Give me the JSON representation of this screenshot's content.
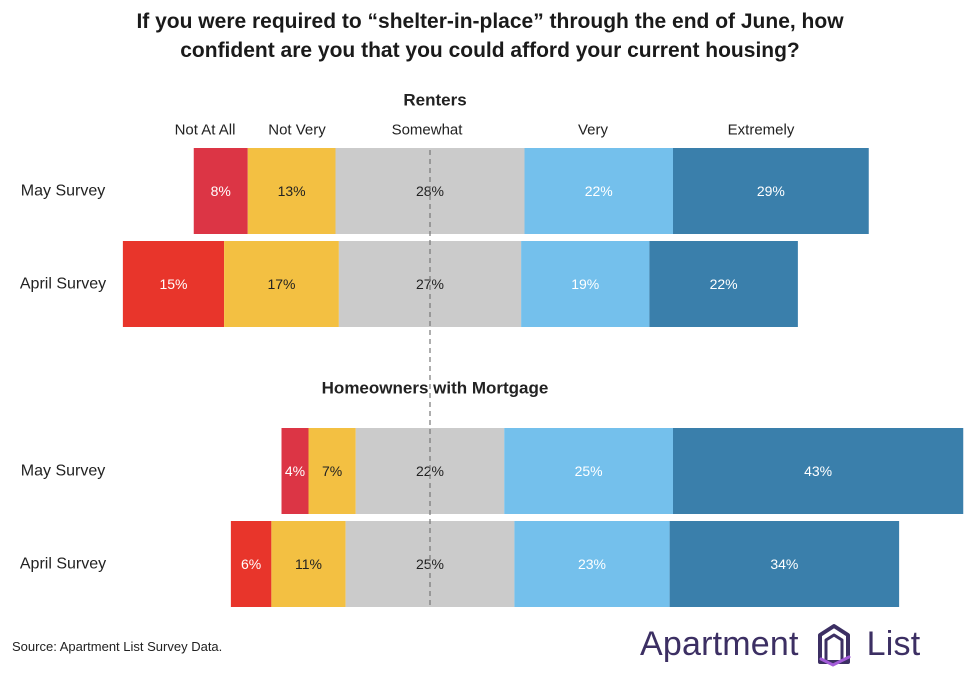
{
  "title": {
    "line1": "If you were required to “shelter-in-place” through the end of June, how",
    "line2": "confident are you that you could afford your current housing?"
  },
  "source": "Source: Apartment List Survey Data.",
  "logo": {
    "left_word": "Apartment",
    "right_word": "List"
  },
  "colors": {
    "not_at_all_may": "#dc3545",
    "not_at_all_april": "#e8352b",
    "not_very": "#f3c042",
    "somewhat": "#cbcbcb",
    "very": "#74c0ec",
    "extremely": "#3a7fab",
    "logo": "#3c2f63"
  },
  "chart_data": {
    "type": "bar",
    "orientation": "horizontal-stacked-diverging",
    "legend": [
      "Not At All",
      "Not Very",
      "Somewhat",
      "Very",
      "Extremely"
    ],
    "panels": [
      {
        "title": "Renters",
        "categories": [
          "May Survey",
          "April Survey"
        ],
        "series": [
          {
            "name": "Not At All",
            "values": [
              8,
              15
            ]
          },
          {
            "name": "Not Very",
            "values": [
              13,
              17
            ]
          },
          {
            "name": "Somewhat",
            "values": [
              28,
              27
            ]
          },
          {
            "name": "Very",
            "values": [
              22,
              19
            ]
          },
          {
            "name": "Extremely",
            "values": [
              29,
              22
            ]
          }
        ]
      },
      {
        "title": "Homeowners with Mortgage",
        "categories": [
          "May Survey",
          "April Survey"
        ],
        "series": [
          {
            "name": "Not At All",
            "values": [
              4,
              6
            ]
          },
          {
            "name": "Not Very",
            "values": [
              7,
              11
            ]
          },
          {
            "name": "Somewhat",
            "values": [
              22,
              25
            ]
          },
          {
            "name": "Very",
            "values": [
              25,
              23
            ]
          },
          {
            "name": "Extremely",
            "values": [
              43,
              34
            ]
          }
        ]
      }
    ],
    "value_suffix": "%",
    "grid": false,
    "centerline": "dashed line at the midpoint of the Somewhat segment"
  }
}
